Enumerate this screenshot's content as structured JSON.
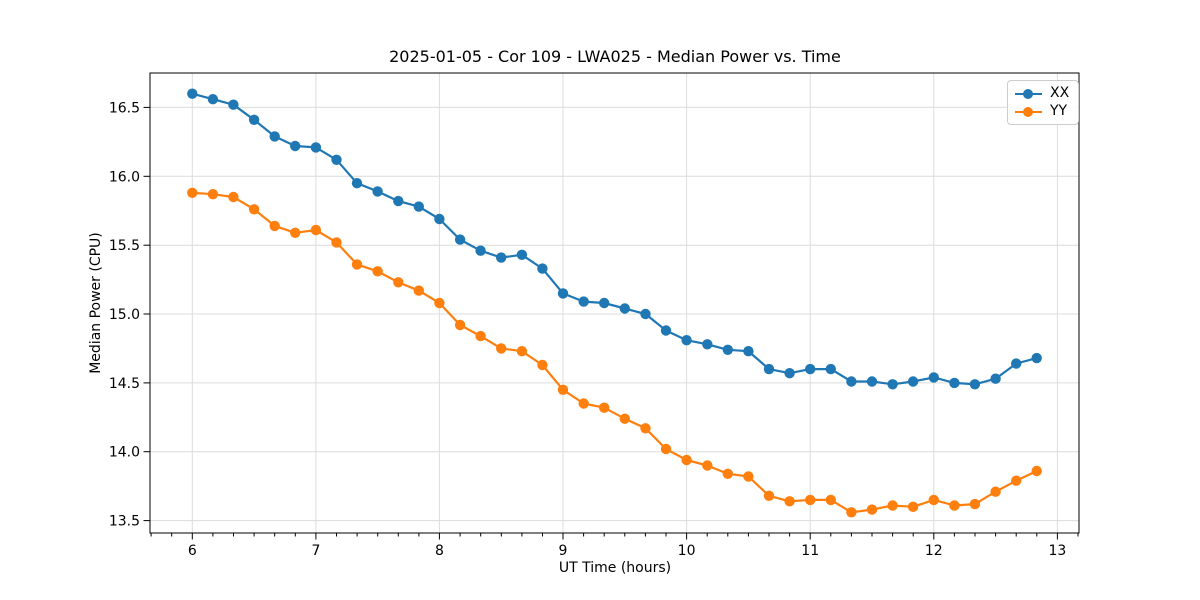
{
  "chart_data": {
    "type": "line",
    "title": "2025-01-05 - Cor 109 - LWA025 - Median Power vs. Time",
    "xlabel": "UT Time (hours)",
    "ylabel": "Median Power (CPU)",
    "xlim": [
      5.658,
      13.175
    ],
    "ylim": [
      13.41,
      16.75
    ],
    "x_ticks": [
      6,
      7,
      8,
      9,
      10,
      11,
      12,
      13
    ],
    "x_minor_tick_step": 0.16667,
    "y_ticks": [
      13.5,
      14.0,
      14.5,
      15.0,
      15.5,
      16.0,
      16.5
    ],
    "y_tick_labels": [
      "13.5",
      "14.0",
      "14.5",
      "15.0",
      "15.5",
      "16.0",
      "16.5"
    ],
    "grid": true,
    "legend": {
      "position": "upper right",
      "entries": [
        "XX",
        "YY"
      ]
    },
    "x": [
      6.0,
      6.167,
      6.333,
      6.5,
      6.667,
      6.833,
      7.0,
      7.167,
      7.333,
      7.5,
      7.667,
      7.833,
      8.0,
      8.167,
      8.333,
      8.5,
      8.667,
      8.833,
      9.0,
      9.167,
      9.333,
      9.5,
      9.667,
      9.833,
      10.0,
      10.167,
      10.333,
      10.5,
      10.667,
      10.833,
      11.0,
      11.167,
      11.333,
      11.5,
      11.667,
      11.833,
      12.0,
      12.167,
      12.333,
      12.5,
      12.667,
      12.833
    ],
    "series": [
      {
        "name": "XX",
        "color": "#1f77b4",
        "marker": "circle",
        "values": [
          16.6,
          16.56,
          16.52,
          16.41,
          16.29,
          16.22,
          16.21,
          16.12,
          15.95,
          15.89,
          15.82,
          15.78,
          15.69,
          15.54,
          15.46,
          15.41,
          15.43,
          15.33,
          15.15,
          15.09,
          15.08,
          15.04,
          15.0,
          14.88,
          14.81,
          14.78,
          14.74,
          14.73,
          14.6,
          14.57,
          14.6,
          14.6,
          14.51,
          14.51,
          14.49,
          14.51,
          14.54,
          14.5,
          14.49,
          14.53,
          14.64,
          14.68
        ]
      },
      {
        "name": "YY",
        "color": "#ff7f0e",
        "marker": "circle",
        "values": [
          15.88,
          15.87,
          15.85,
          15.76,
          15.64,
          15.59,
          15.61,
          15.52,
          15.36,
          15.31,
          15.23,
          15.17,
          15.08,
          14.92,
          14.84,
          14.75,
          14.73,
          14.63,
          14.45,
          14.35,
          14.32,
          14.24,
          14.17,
          14.02,
          13.94,
          13.9,
          13.84,
          13.82,
          13.68,
          13.64,
          13.65,
          13.65,
          13.56,
          13.58,
          13.61,
          13.6,
          13.65,
          13.61,
          13.62,
          13.71,
          13.79,
          13.86
        ]
      }
    ],
    "style": {
      "grid_color": "#dcdcdc",
      "spine_color": "#000000",
      "background": "#ffffff"
    }
  }
}
